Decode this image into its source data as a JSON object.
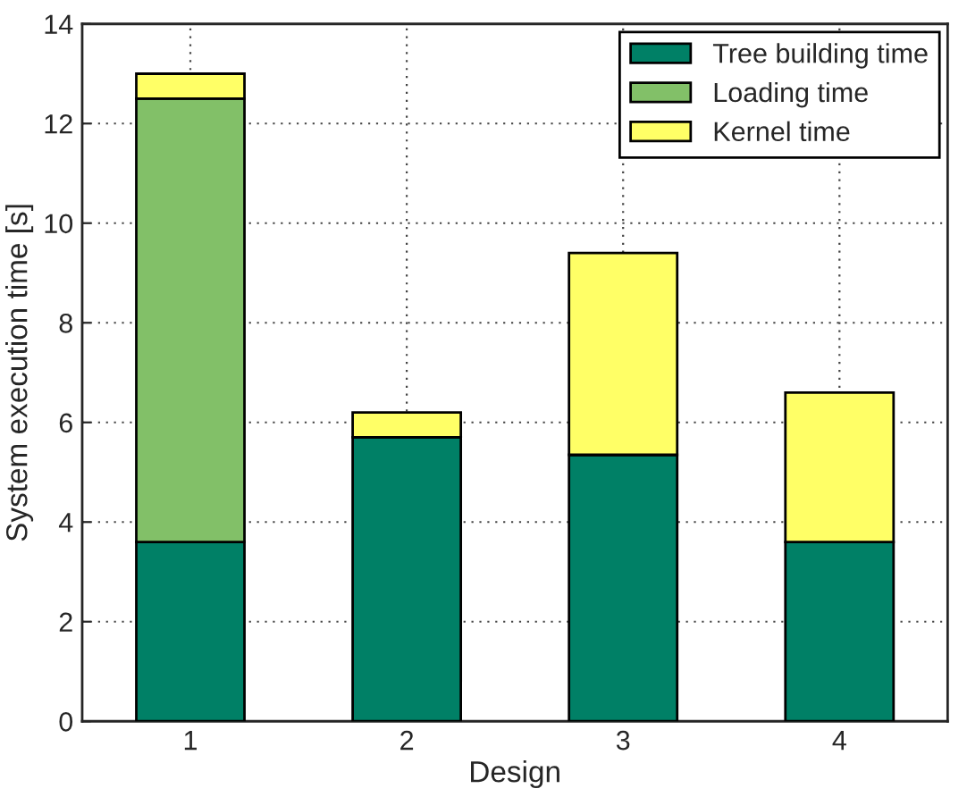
{
  "chart_data": {
    "type": "bar",
    "stacked": true,
    "xlabel": "Design",
    "ylabel": "System execution time [s]",
    "categories": [
      "1",
      "2",
      "3",
      "4"
    ],
    "series": [
      {
        "name": "Tree building time",
        "color": "#008066",
        "values": [
          3.6,
          5.7,
          5.35,
          3.6
        ]
      },
      {
        "name": "Loading time",
        "color": "#82c068",
        "values": [
          8.9,
          0,
          0,
          0
        ]
      },
      {
        "name": "Kernel time",
        "color": "#ffff66",
        "values": [
          0.5,
          0.5,
          4.05,
          3.0
        ]
      }
    ],
    "ylim": [
      0,
      14
    ],
    "yticks": [
      0,
      2,
      4,
      6,
      8,
      10,
      12,
      14
    ],
    "grid": true,
    "legend": "top right"
  }
}
